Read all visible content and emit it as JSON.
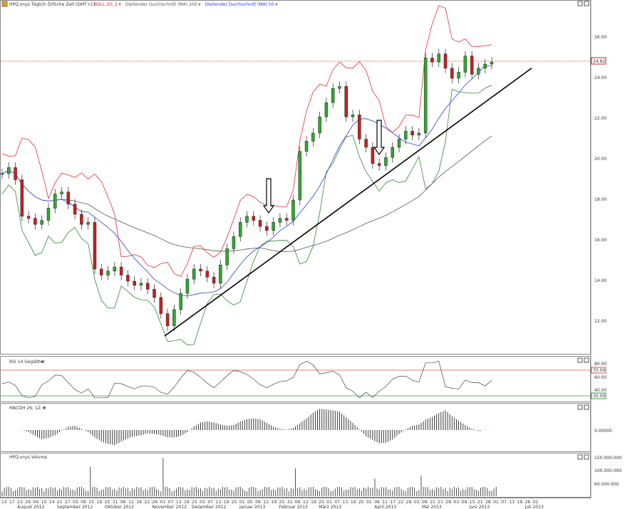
{
  "header": {
    "symbol_title": "HPQ:xnys Täglich Örtliche Zeit (GMT+1)",
    "dropdown_glyph": "▾",
    "indicators": [
      {
        "label": "BOLL 20; 2",
        "color": "#e02020"
      },
      {
        "label": "Gleitender Durchschnitt (MA) 200",
        "color": "#555555"
      },
      {
        "label": "Gleitender Durchschnitt (MA) 50",
        "color": "#3040d0"
      }
    ]
  },
  "panels": {
    "rsi_title": "RSI 14 Geglättet",
    "macd_title": "MACDH 26; 12; 9",
    "volume_title": "HPQ:xnys Volume"
  },
  "price_axis": {
    "ticks": [
      "26.00",
      "24.00",
      "22.00",
      "20.00",
      "18.00",
      "16.00",
      "14.00",
      "12.00"
    ],
    "last_price": "24.82"
  },
  "rsi_axis": {
    "ticks": [
      "80.00",
      "60.00",
      "40.00"
    ],
    "upper_level": "70.00",
    "lower_level": "30.00"
  },
  "macd_axis": {
    "ticks": [
      "0.00000"
    ]
  },
  "volume_axis": {
    "ticks": [
      "150.000.000",
      "100.000.000",
      "60.000.000"
    ]
  },
  "x_axis": {
    "day_labels": [
      "13",
      "17",
      "23",
      "29",
      "04",
      "10",
      "14",
      "21",
      "27",
      "03",
      "09",
      "15",
      "19",
      "25",
      "31",
      "06",
      "12",
      "18",
      "22",
      "26",
      "01",
      "07",
      "13",
      "19",
      "25",
      "03",
      "07",
      "13",
      "19",
      "25",
      "01",
      "05",
      "09",
      "13",
      "19",
      "25",
      "31",
      "06",
      "12",
      "19",
      "25",
      "01",
      "07",
      "13",
      "19",
      "25",
      "01",
      "06",
      "11",
      "17",
      "22",
      "28",
      "03",
      "09",
      "15",
      "21",
      "28",
      "03",
      "09",
      "15",
      "21",
      "28",
      "01",
      "07",
      "13",
      "19",
      "26",
      "01"
    ],
    "months": [
      {
        "label": "August 2012",
        "day_index": 2
      },
      {
        "label": "September 2012",
        "day_index": 7
      },
      {
        "label": "Oktober 2012",
        "day_index": 13
      },
      {
        "label": "November 2012",
        "day_index": 19
      },
      {
        "label": "Dezember 2012",
        "day_index": 24
      },
      {
        "label": "Januar 2013",
        "day_index": 30
      },
      {
        "label": "Februar 2013",
        "day_index": 35
      },
      {
        "label": "März 2013",
        "day_index": 40
      },
      {
        "label": "April 2013",
        "day_index": 47
      },
      {
        "label": "Mai 2013",
        "day_index": 53
      },
      {
        "label": "Juni 2013",
        "day_index": 59
      },
      {
        "label": "Juli 2013",
        "day_index": 66
      }
    ]
  },
  "chart_data": {
    "type": "line",
    "price_range": [
      11,
      27
    ],
    "candles_close": [
      19.3,
      19.6,
      19.0,
      17.2,
      17.1,
      16.8,
      17.0,
      17.6,
      18.3,
      18.4,
      17.8,
      17.3,
      16.8,
      16.9,
      14.6,
      14.3,
      14.5,
      14.7,
      14.3,
      14.0,
      13.8,
      13.9,
      13.6,
      13.2,
      12.4,
      11.8,
      12.6,
      13.4,
      14.1,
      14.6,
      14.5,
      14.2,
      13.9,
      14.8,
      15.6,
      16.2,
      16.9,
      17.2,
      17.0,
      16.7,
      16.5,
      16.9,
      17.1,
      17.0,
      18.0,
      20.4,
      20.9,
      21.3,
      22.1,
      22.8,
      23.5,
      23.6,
      22.1,
      22.2,
      21.0,
      20.6,
      19.8,
      19.7,
      20.1,
      20.6,
      21.0,
      21.4,
      21.2,
      21.3,
      25.0,
      24.8,
      25.2,
      24.5,
      24.0,
      24.3,
      25.1,
      24.2,
      24.5,
      24.7,
      24.8
    ],
    "support_line": {
      "start_price": 11.3,
      "end_price": 24.5
    },
    "arrow_annotations": 2,
    "rsi_range": [
      20,
      90
    ],
    "macd_range": [
      -0.3,
      0.3
    ],
    "volume_max": 170000000
  }
}
